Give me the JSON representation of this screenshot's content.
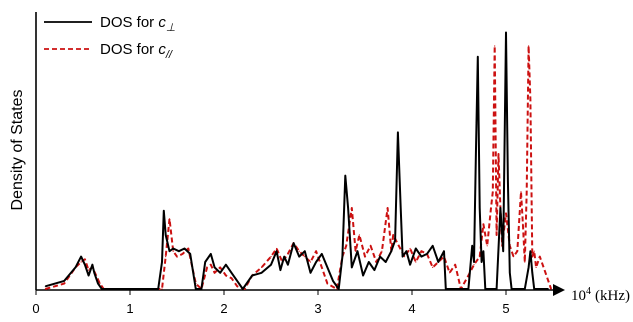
{
  "chart_data": {
    "type": "line",
    "ylabel": "Density of States",
    "xlabel_text": "(kHz)",
    "xlabel_base": "10",
    "xlabel_exp": "4",
    "xlim": [
      0,
      5.6
    ],
    "ylim": [
      0,
      1.0
    ],
    "y_ticks_shown": false,
    "xticks": [
      0,
      1,
      2,
      3,
      4,
      5
    ],
    "xtick_labels": [
      "0",
      "1",
      "2",
      "3",
      "4",
      "5"
    ],
    "grid": false,
    "legend": "top-left",
    "series": [
      {
        "name_prefix": "DOS for ",
        "name_symbol": "c",
        "name_subscript": "⊥",
        "color": "#000000",
        "dash": "solid",
        "x": [
          0.1,
          0.3,
          0.42,
          0.48,
          0.52,
          0.56,
          0.6,
          0.62,
          0.66,
          0.7,
          0.75,
          1.3,
          1.34,
          1.36,
          1.38,
          1.42,
          1.46,
          1.52,
          1.58,
          1.64,
          1.7,
          1.76,
          1.8,
          1.86,
          1.9,
          1.96,
          2.02,
          2.08,
          2.14,
          2.2,
          2.3,
          2.4,
          2.5,
          2.56,
          2.6,
          2.64,
          2.68,
          2.74,
          2.8,
          2.86,
          2.92,
          2.98,
          3.04,
          3.1,
          3.16,
          3.22,
          3.26,
          3.29,
          3.32,
          3.36,
          3.42,
          3.48,
          3.54,
          3.6,
          3.66,
          3.72,
          3.78,
          3.82,
          3.85,
          3.88,
          3.9,
          3.94,
          3.98,
          4.04,
          4.1,
          4.16,
          4.22,
          4.28,
          4.34,
          4.36,
          4.4,
          4.5,
          4.6,
          4.64,
          4.66,
          4.68,
          4.7,
          4.72,
          4.74,
          4.76,
          4.78,
          4.8,
          4.9,
          4.94,
          4.97,
          5.0,
          5.02,
          5.04,
          5.06,
          5.08,
          5.1,
          5.14,
          5.2,
          5.24,
          5.26,
          5.28,
          5.3,
          5.34,
          5.38,
          5.45
        ],
        "y": [
          0.01,
          0.03,
          0.08,
          0.12,
          0.09,
          0.05,
          0.09,
          0.06,
          0.02,
          0.0,
          0.0,
          0.0,
          0.1,
          0.29,
          0.2,
          0.14,
          0.15,
          0.14,
          0.15,
          0.13,
          0.0,
          0.0,
          0.1,
          0.13,
          0.08,
          0.06,
          0.09,
          0.06,
          0.03,
          0.0,
          0.05,
          0.06,
          0.09,
          0.14,
          0.07,
          0.12,
          0.09,
          0.17,
          0.12,
          0.14,
          0.06,
          0.1,
          0.13,
          0.08,
          0.03,
          0.0,
          0.12,
          0.42,
          0.3,
          0.08,
          0.14,
          0.05,
          0.1,
          0.07,
          0.12,
          0.1,
          0.14,
          0.18,
          0.58,
          0.3,
          0.12,
          0.14,
          0.09,
          0.15,
          0.12,
          0.13,
          0.16,
          0.1,
          0.14,
          0.0,
          0.0,
          0.0,
          0.0,
          0.16,
          0.1,
          0.5,
          0.86,
          0.3,
          0.1,
          0.14,
          0.0,
          0.0,
          0.0,
          0.3,
          0.14,
          0.95,
          0.4,
          0.06,
          0.0,
          0.0,
          0.0,
          0.0,
          0.0,
          0.08,
          0.14,
          0.06,
          0.0,
          0.0,
          0.0,
          0.0
        ]
      },
      {
        "name_prefix": "DOS for ",
        "name_symbol": "c",
        "name_subscript": "//",
        "color": "#cc1111",
        "dash": "dashed",
        "x": [
          0.1,
          0.3,
          0.42,
          0.48,
          0.52,
          0.56,
          0.6,
          0.64,
          0.68,
          0.72,
          0.78,
          1.34,
          1.38,
          1.42,
          1.46,
          1.5,
          1.56,
          1.62,
          1.7,
          1.76,
          1.82,
          1.86,
          1.9,
          1.96,
          2.02,
          2.08,
          2.14,
          2.22,
          2.3,
          2.4,
          2.5,
          2.56,
          2.62,
          2.68,
          2.74,
          2.8,
          2.86,
          2.92,
          2.98,
          3.04,
          3.1,
          3.2,
          3.26,
          3.3,
          3.36,
          3.4,
          3.44,
          3.5,
          3.56,
          3.62,
          3.68,
          3.74,
          3.78,
          3.8,
          3.86,
          3.92,
          3.98,
          4.04,
          4.1,
          4.16,
          4.22,
          4.28,
          4.34,
          4.4,
          4.46,
          4.52,
          4.6,
          4.66,
          4.72,
          4.76,
          4.8,
          4.84,
          4.86,
          4.88,
          4.9,
          4.92,
          4.94,
          4.96,
          5.0,
          5.04,
          5.08,
          5.12,
          5.16,
          5.18,
          5.2,
          5.22,
          5.24,
          5.26,
          5.28,
          5.3,
          5.32,
          5.36,
          5.42,
          5.48
        ],
        "y": [
          0.0,
          0.02,
          0.08,
          0.1,
          0.11,
          0.07,
          0.08,
          0.05,
          0.02,
          0.0,
          0.0,
          0.0,
          0.12,
          0.26,
          0.14,
          0.12,
          0.13,
          0.15,
          0.02,
          0.0,
          0.08,
          0.09,
          0.06,
          0.08,
          0.05,
          0.04,
          0.01,
          0.0,
          0.05,
          0.08,
          0.12,
          0.15,
          0.1,
          0.13,
          0.17,
          0.14,
          0.12,
          0.1,
          0.14,
          0.08,
          0.02,
          0.0,
          0.12,
          0.16,
          0.3,
          0.14,
          0.2,
          0.12,
          0.16,
          0.1,
          0.14,
          0.3,
          0.14,
          0.2,
          0.16,
          0.12,
          0.15,
          0.1,
          0.14,
          0.13,
          0.08,
          0.1,
          0.12,
          0.06,
          0.09,
          0.0,
          0.05,
          0.09,
          0.12,
          0.24,
          0.16,
          0.3,
          0.36,
          0.9,
          0.2,
          0.5,
          0.3,
          0.16,
          0.28,
          0.16,
          0.12,
          0.14,
          0.36,
          0.24,
          0.1,
          0.36,
          0.9,
          0.7,
          0.12,
          0.14,
          0.08,
          0.12,
          0.06,
          0.0
        ]
      }
    ]
  }
}
